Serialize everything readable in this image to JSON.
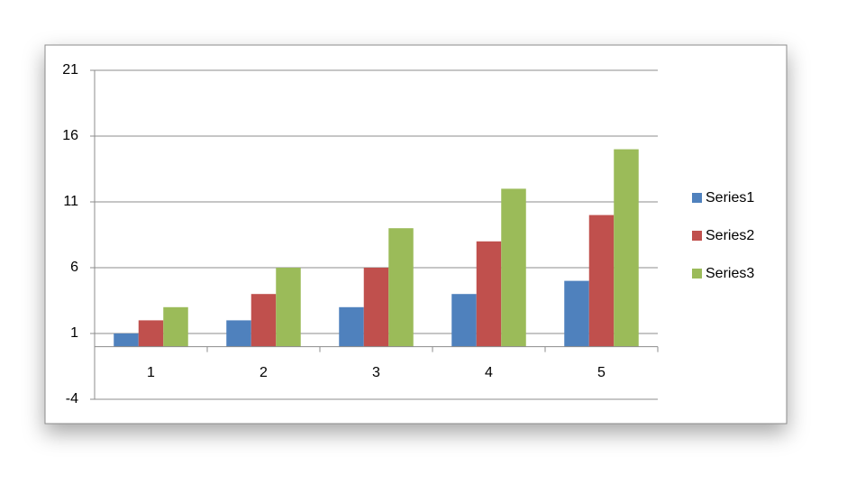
{
  "chart_data": {
    "type": "bar",
    "categories": [
      "1",
      "2",
      "3",
      "4",
      "5"
    ],
    "series": [
      {
        "name": "Series1",
        "color": "#4f81bd",
        "values": [
          1,
          2,
          3,
          4,
          5
        ]
      },
      {
        "name": "Series2",
        "color": "#c0504d",
        "values": [
          2,
          4,
          6,
          8,
          10
        ]
      },
      {
        "name": "Series3",
        "color": "#9bbb59",
        "values": [
          3,
          6,
          9,
          12,
          15
        ]
      }
    ],
    "ylim": [
      -4,
      21
    ],
    "yticks": [
      -4,
      1,
      6,
      11,
      16,
      21
    ],
    "grid": true,
    "legend": "right"
  }
}
